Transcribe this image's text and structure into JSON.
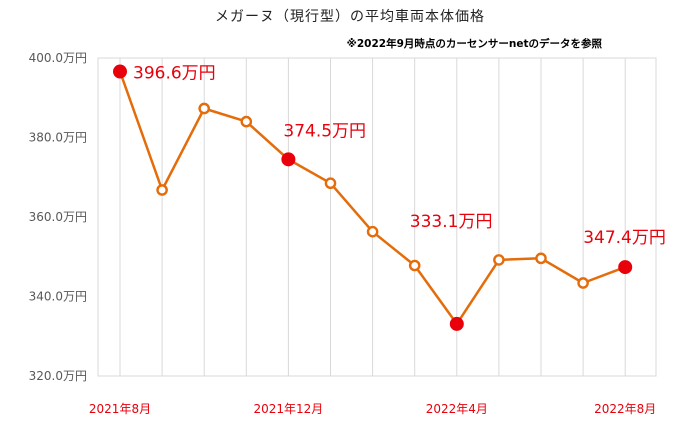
{
  "chart_data": {
    "type": "line",
    "title": "メガーヌ（現行型）の平均車両本体価格",
    "subtitle": "※2022年9月時点のカーセンサーnetのデータを参照",
    "x_tick_labels": [
      "2021年8月",
      "2021年12月",
      "2022年4月",
      "2022年8月"
    ],
    "y_tick_labels": [
      "320.0万円",
      "340.0万円",
      "360.0万円",
      "380.0万円",
      "400.0万円"
    ],
    "ylim": [
      320,
      400
    ],
    "y_unit": "万円",
    "grid": "vertical",
    "line_color": "#e46c0a",
    "highlight_color": "#e8000b",
    "series": [
      {
        "values": [
          396.6,
          366.8,
          387.3,
          384.0,
          374.5,
          368.5,
          356.3,
          347.8,
          333.1,
          349.2,
          349.6,
          343.4,
          347.4
        ],
        "highlighted_labels": [
          {
            "index": 0,
            "label": "396.6万円"
          },
          {
            "index": 4,
            "label": "374.5万円"
          },
          {
            "index": 8,
            "label": "333.1万円"
          },
          {
            "index": 12,
            "label": "347.4万円"
          }
        ]
      }
    ]
  }
}
